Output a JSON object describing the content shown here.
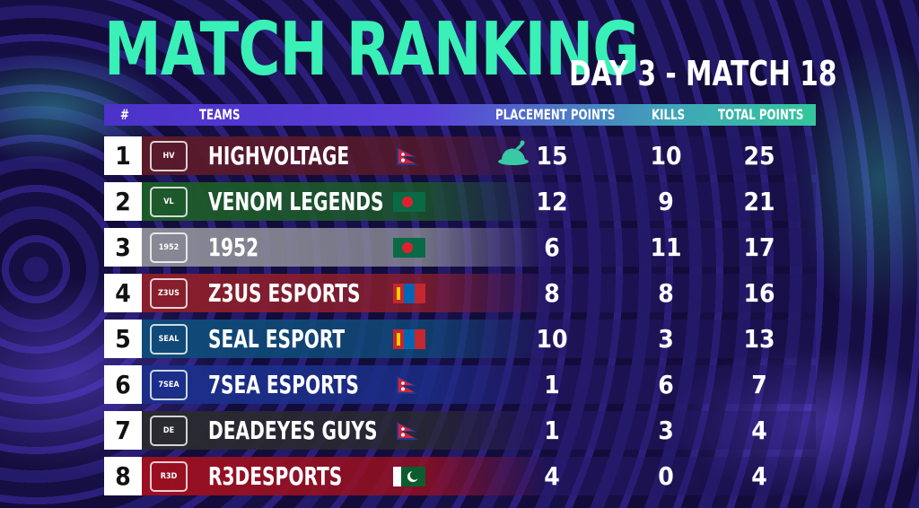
{
  "header": {
    "title": "MATCH RANKING",
    "subtitle": "DAY 3 - MATCH 18"
  },
  "columns": {
    "rank": "#",
    "teams": "TEAMS",
    "placement": "PLACEMENT POINTS",
    "kills": "KILLS",
    "total": "TOTAL POINTS"
  },
  "rows": [
    {
      "rank": "1",
      "team": "HIGHVOLTAGE",
      "logo_text": "HV",
      "flag": "nepal",
      "placement": "15",
      "kills": "10",
      "total": "25",
      "color": "#5a1a2a",
      "chicken": true
    },
    {
      "rank": "2",
      "team": "VENOM LEGENDS",
      "logo_text": "VL",
      "flag": "bangladesh",
      "placement": "12",
      "kills": "9",
      "total": "21",
      "color": "#1d5a2a"
    },
    {
      "rank": "3",
      "team": "1952",
      "logo_text": "1952",
      "flag": "bangladesh",
      "placement": "6",
      "kills": "11",
      "total": "17",
      "color": "#8a8a96"
    },
    {
      "rank": "4",
      "team": "Z3US ESPORTS",
      "logo_text": "Z3US",
      "flag": "mongolia",
      "placement": "8",
      "kills": "8",
      "total": "16",
      "color": "#8a1e2c"
    },
    {
      "rank": "5",
      "team": "SEAL ESPORT",
      "logo_text": "SEAL",
      "flag": "mongolia",
      "placement": "10",
      "kills": "3",
      "total": "13",
      "color": "#0f4a78"
    },
    {
      "rank": "6",
      "team": "7SEA ESPORTS",
      "logo_text": "7SEA",
      "flag": "nepal",
      "placement": "1",
      "kills": "6",
      "total": "7",
      "color": "#1b2f8a"
    },
    {
      "rank": "7",
      "team": "DEADEYES GUYS",
      "logo_text": "DE",
      "flag": "nepal",
      "placement": "1",
      "kills": "3",
      "total": "4",
      "color": "#2a2a30"
    },
    {
      "rank": "8",
      "team": "R3DESPORTS",
      "logo_text": "R3D",
      "flag": "pakistan",
      "placement": "4",
      "kills": "0",
      "total": "4",
      "color": "#9a1020"
    }
  ],
  "icons": {
    "chicken": "chicken-dinner-icon"
  },
  "colors": {
    "title": "#39f0b6",
    "header_start": "#4b32c8",
    "header_end": "#34c79b"
  }
}
